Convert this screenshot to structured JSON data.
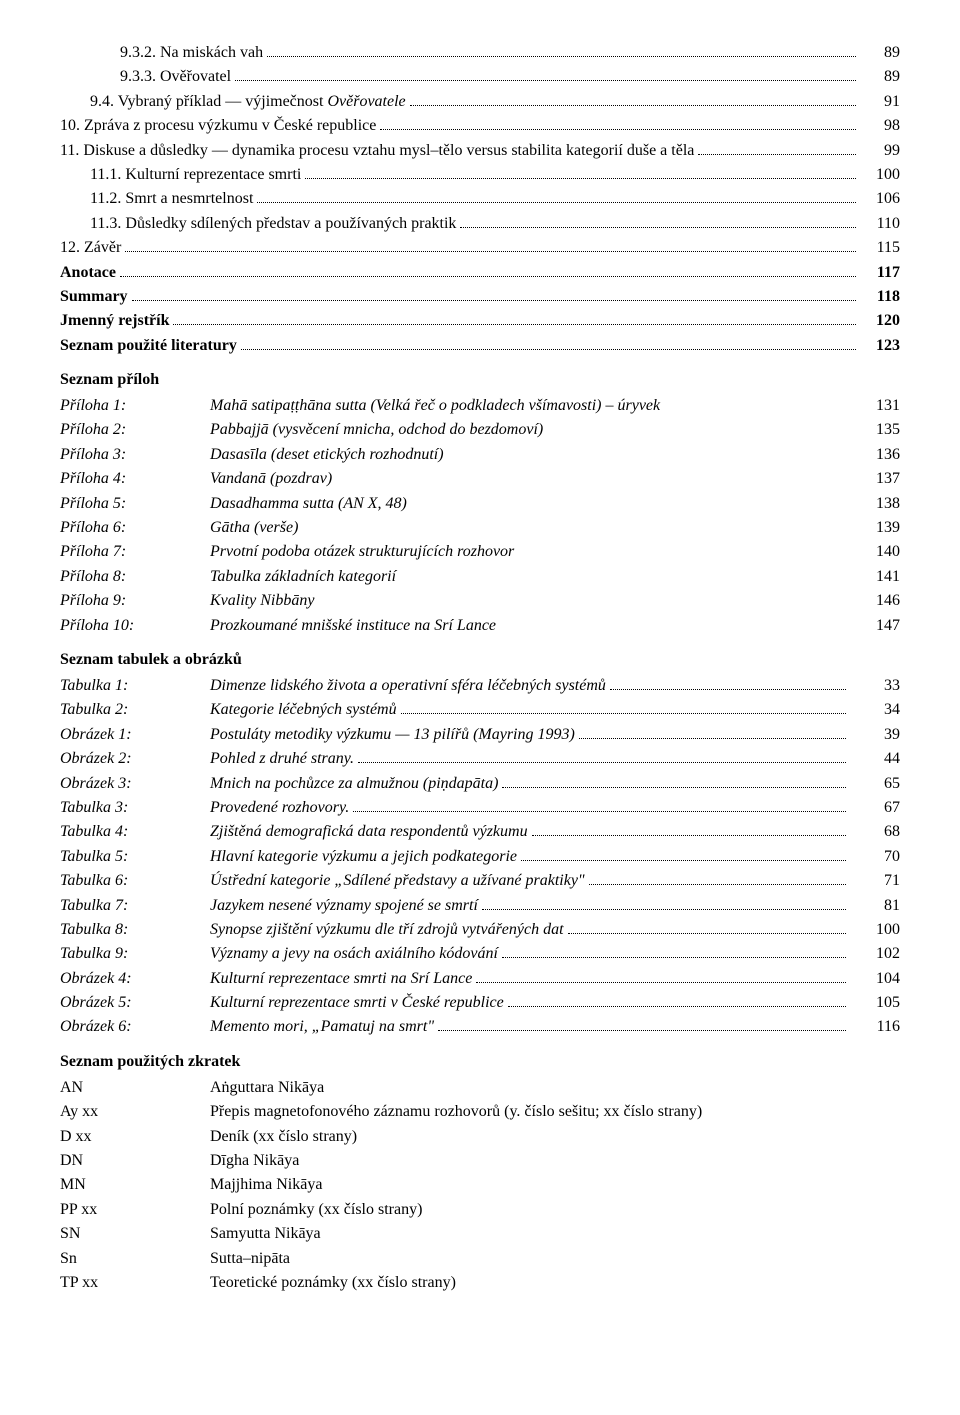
{
  "toc": [
    {
      "label": "9.3.2. Na miskách vah",
      "page": "89",
      "indent": 2,
      "bold": false
    },
    {
      "label": "9.3.3. Ověřovatel",
      "page": "89",
      "indent": 2,
      "bold": false
    },
    {
      "label": "9.4. Vybraný příklad — výjimečnost Ověřovatele",
      "page": "91",
      "indent": 1,
      "bold": false,
      "italic_from": "Ověřovatele"
    },
    {
      "label": "10. Zpráva z procesu výzkumu v České republice",
      "page": "98",
      "indent": 0,
      "bold": false
    },
    {
      "label": "11. Diskuse a důsledky — dynamika procesu vztahu mysl–tělo versus stabilita kategorií duše a těla",
      "page": "99",
      "indent": 0,
      "bold": false
    },
    {
      "label": "11.1. Kulturní reprezentace smrti",
      "page": "100",
      "indent": 1,
      "bold": false
    },
    {
      "label": "11.2. Smrt a nesmrtelnost",
      "page": "106",
      "indent": 1,
      "bold": false
    },
    {
      "label": "11.3. Důsledky sdílených představ a používaných praktik",
      "page": "110",
      "indent": 1,
      "bold": false
    },
    {
      "label": "12. Závěr",
      "page": "115",
      "indent": 0,
      "bold": false
    },
    {
      "label": "Anotace",
      "page": "117",
      "indent": 0,
      "bold": true
    },
    {
      "label": "Summary",
      "page": "118",
      "indent": 0,
      "bold": true
    },
    {
      "label": "Jmenný rejstřík",
      "page": "120",
      "indent": 0,
      "bold": true
    },
    {
      "label": "Seznam použité literatury",
      "page": "123",
      "indent": 0,
      "bold": true
    }
  ],
  "appendices_heading": "Seznam příloh",
  "appendices": [
    {
      "label": "Příloha 1:",
      "desc": "Mahā satipaṭṭhāna sutta (Velká řeč o podkladech všímavosti) – úryvek",
      "page": "131"
    },
    {
      "label": "Příloha 2:",
      "desc": "Pabbajjā (vysvěcení mnicha, odchod do bezdomoví)",
      "page": "135"
    },
    {
      "label": "Příloha 3:",
      "desc": "Dasasīla (deset etických rozhodnutí)",
      "page": "136"
    },
    {
      "label": "Příloha 4:",
      "desc": "Vandanā (pozdrav)",
      "page": "137"
    },
    {
      "label": "Příloha 5:",
      "desc": "Dasadhamma sutta (AN X, 48)",
      "page": "138"
    },
    {
      "label": "Příloha 6:",
      "desc": "Gātha (verše)",
      "page": "139"
    },
    {
      "label": "Příloha 7:",
      "desc": "Prvotní podoba otázek strukturujících rozhovor",
      "page": "140"
    },
    {
      "label": "Příloha 8:",
      "desc": "Tabulka základních kategorií",
      "page": "141"
    },
    {
      "label": "Příloha 9:",
      "desc": "Kvality Nibbāny",
      "page": "146"
    },
    {
      "label": "Příloha 10:",
      "desc": "Prozkoumané mnišské instituce na Srí Lance",
      "page": "147"
    }
  ],
  "tables_heading": "Seznam tabulek a obrázků",
  "tables": [
    {
      "label": "Tabulka 1:",
      "desc": "Dimenze lidského života a operativní sféra léčebných systémů",
      "page": "33",
      "dots": true
    },
    {
      "label": "Tabulka 2:",
      "desc": "Kategorie léčebných systémů",
      "page": "34",
      "dots": true
    },
    {
      "label": "Obrázek 1:",
      "desc": "Postuláty metodiky výzkumu — 13 pilířů (Mayring 1993)",
      "page": "39",
      "dots": true
    },
    {
      "label": "Obrázek 2:",
      "desc": "Pohled z druhé strany.",
      "page": "44",
      "dots": true
    },
    {
      "label": "Obrázek 3:",
      "desc": "Mnich na pochůzce za almužnou (piṇdapāta)",
      "page": "65",
      "dots": true
    },
    {
      "label": "Tabulka 3:",
      "desc": "Provedené rozhovory.",
      "page": "67",
      "dots": true
    },
    {
      "label": "Tabulka 4:",
      "desc": "Zjištěná demografická data respondentů výzkumu",
      "page": "68",
      "dots": true
    },
    {
      "label": "Tabulka 5:",
      "desc": "Hlavní kategorie výzkumu a jejich podkategorie",
      "page": "70",
      "dots": true
    },
    {
      "label": "Tabulka 6:",
      "desc": "Ústřední kategorie „Sdílené představy a užívané praktiky\"",
      "page": "71",
      "dots": true
    },
    {
      "label": "Tabulka 7:",
      "desc": "Jazykem nesené významy spojené se smrtí",
      "page": "81",
      "dots": true
    },
    {
      "label": "Tabulka 8:",
      "desc": "Synopse zjištění výzkumu dle tří zdrojů vytvářených dat",
      "page": "100",
      "dots": true
    },
    {
      "label": "Tabulka 9:",
      "desc": "Významy a jevy na osách axiálního kódování",
      "page": "102",
      "dots": true
    },
    {
      "label": "Obrázek 4:",
      "desc": "Kulturní reprezentace smrti na Srí Lance",
      "page": "104",
      "dots": true
    },
    {
      "label": "Obrázek 5:",
      "desc": "Kulturní reprezentace smrti v České republice",
      "page": "105",
      "dots": true
    },
    {
      "label": "Obrázek 6:",
      "desc": "Memento mori, „Pamatuj na smrt\"",
      "page": "116",
      "dots": true
    }
  ],
  "abbr_heading": "Seznam použitých zkratek",
  "abbr": [
    {
      "k": "AN",
      "v": "Aṅguttara Nikāya"
    },
    {
      "k": "Ay xx",
      "v": "Přepis magnetofonového záznamu rozhovorů (y. číslo sešitu; xx číslo strany)"
    },
    {
      "k": "D xx",
      "v": "Deník (xx číslo strany)"
    },
    {
      "k": "DN",
      "v": "Dīgha Nikāya"
    },
    {
      "k": "MN",
      "v": "Majjhima Nikāya"
    },
    {
      "k": "PP xx",
      "v": "Polní poznámky (xx číslo strany)"
    },
    {
      "k": "SN",
      "v": "Samyutta Nikāya"
    },
    {
      "k": "Sn",
      "v": "Sutta–nipāta"
    },
    {
      "k": "TP xx",
      "v": "Teoretické poznámky (xx číslo strany)"
    }
  ]
}
